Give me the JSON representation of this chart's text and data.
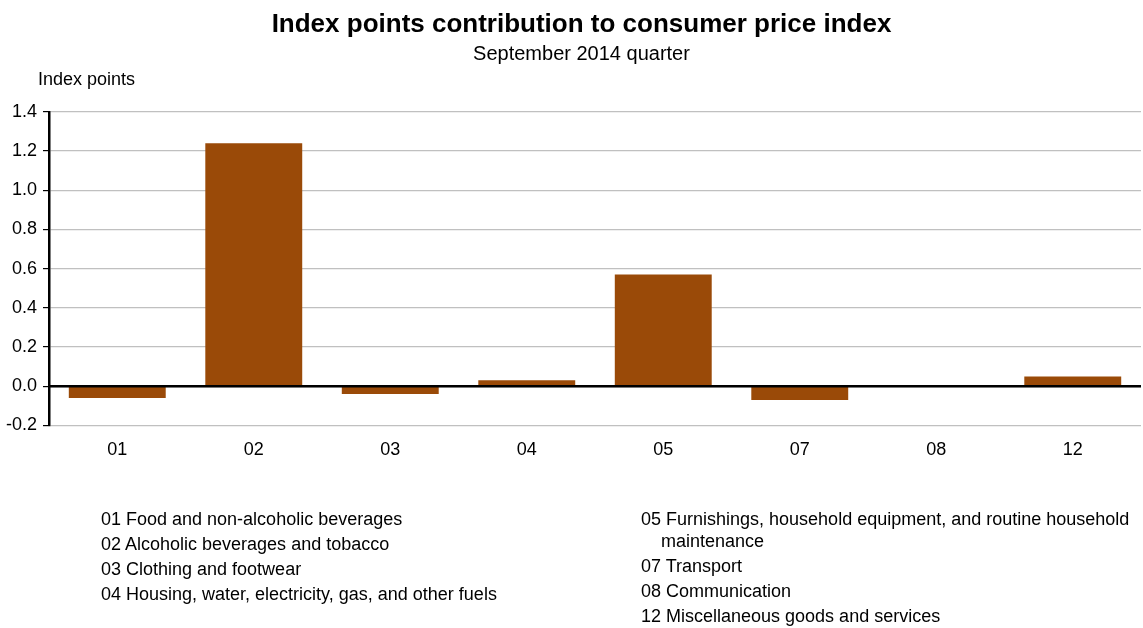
{
  "chart_data": {
    "type": "bar",
    "title": "Index points contribution to consumer price index",
    "subtitle": "September 2014 quarter",
    "ylabel": "Index points",
    "categories": [
      "01",
      "02",
      "03",
      "04",
      "05",
      "07",
      "08",
      "12"
    ],
    "values": [
      -0.06,
      1.24,
      -0.04,
      0.03,
      0.57,
      -0.07,
      0,
      0.05
    ],
    "color": "#9a4a08",
    "ylim": [
      -0.2,
      1.4
    ],
    "yticks": [
      {
        "value": -0.2,
        "label": "-0.2"
      },
      {
        "value": 0,
        "label": "0.0"
      },
      {
        "value": 0.2,
        "label": "0.2"
      },
      {
        "value": 0.4,
        "label": "0.4"
      },
      {
        "value": 0.6,
        "label": "0.6"
      },
      {
        "value": 0.8,
        "label": "0.8"
      },
      {
        "value": 1,
        "label": "1.0"
      },
      {
        "value": 1.2,
        "label": "1.2"
      },
      {
        "value": 1.4,
        "label": "1.4"
      }
    ],
    "grid": "y",
    "legend": false,
    "annotations": [
      "01 Food and non-alcoholic beverages",
      "02 Alcoholic beverages and tobacco",
      "03 Clothing and footwear",
      "04 Housing, water, electricity, gas, and other fuels",
      "05 Furnishings, household equipment, and routine household maintenance",
      "07 Transport",
      "08 Communication",
      "12 Miscellaneous goods and services"
    ]
  }
}
